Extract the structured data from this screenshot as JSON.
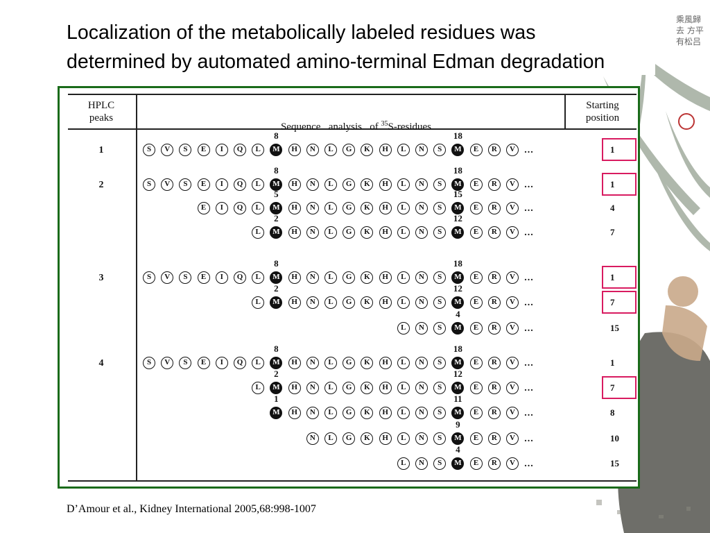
{
  "slide": {
    "title_lines": [
      "Localization of the metabolically labeled residues was",
      "determined by automated amino-terminal Edman degradation"
    ],
    "citation": "D’Amour et al., Kidney International 2005,68:998-1007"
  },
  "table": {
    "header_hplc": "HPLC\npeaks",
    "header_sequence": "Sequence   analysis   of ",
    "header_sequence_sup": "35",
    "header_sequence_tail": "S-residues",
    "header_start": "Starting\nposition",
    "ellipsis": "...",
    "rows": [
      {
        "peak": "1",
        "start_index": 0,
        "met_index": 7,
        "label": "8",
        "met2_index": 17,
        "label2": "18",
        "position": "1",
        "highlight": true
      },
      {
        "peak": "2",
        "start_index": 0,
        "met_index": 7,
        "label": "8",
        "met2_index": 17,
        "label2": "18",
        "position": "1",
        "highlight": true
      },
      {
        "peak": "",
        "start_index": 3,
        "met_index": 7,
        "label": "5",
        "met2_index": 17,
        "label2": "15",
        "position": "4",
        "highlight": false
      },
      {
        "peak": "",
        "start_index": 6,
        "met_index": 7,
        "label": "2",
        "met2_index": 17,
        "label2": "12",
        "position": "7",
        "highlight": false
      },
      {
        "peak": "3",
        "start_index": 0,
        "met_index": 7,
        "label": "8",
        "met2_index": 17,
        "label2": "18",
        "position": "1",
        "highlight": true
      },
      {
        "peak": "",
        "start_index": 6,
        "met_index": 7,
        "label": "2",
        "met2_index": 17,
        "label2": "12",
        "position": "7",
        "highlight": true
      },
      {
        "peak": "",
        "start_index": 14,
        "met_index": -1,
        "label": "",
        "met2_index": 17,
        "label2": "4",
        "position": "15",
        "highlight": false
      },
      {
        "peak": "4",
        "start_index": 0,
        "met_index": 7,
        "label": "8",
        "met2_index": 17,
        "label2": "18",
        "position": "1",
        "highlight": false
      },
      {
        "peak": "",
        "start_index": 6,
        "met_index": 7,
        "label": "2",
        "met2_index": 17,
        "label2": "12",
        "position": "7",
        "highlight": true
      },
      {
        "peak": "",
        "start_index": 7,
        "met_index": 7,
        "label": "1",
        "met2_index": 17,
        "label2": "11",
        "position": "8",
        "highlight": false
      },
      {
        "peak": "",
        "start_index": 9,
        "met_index": -1,
        "label": "",
        "met2_index": 17,
        "label2": "9",
        "position": "10",
        "highlight": false
      },
      {
        "peak": "",
        "start_index": 14,
        "met_index": -1,
        "label": "",
        "met2_index": 17,
        "label2": "4",
        "position": "15",
        "highlight": false
      }
    ],
    "full_sequence": [
      "S",
      "V",
      "S",
      "E",
      "I",
      "Q",
      "L",
      "M",
      "H",
      "N",
      "L",
      "G",
      "K",
      "H",
      "L",
      "N",
      "S",
      "M",
      "E",
      "R",
      "V"
    ]
  },
  "colors": {
    "frame": "#1a6b1a",
    "highlight": "#d81b60"
  },
  "decor": {
    "calligraphy": "乘風歸去 方平有松吕"
  }
}
